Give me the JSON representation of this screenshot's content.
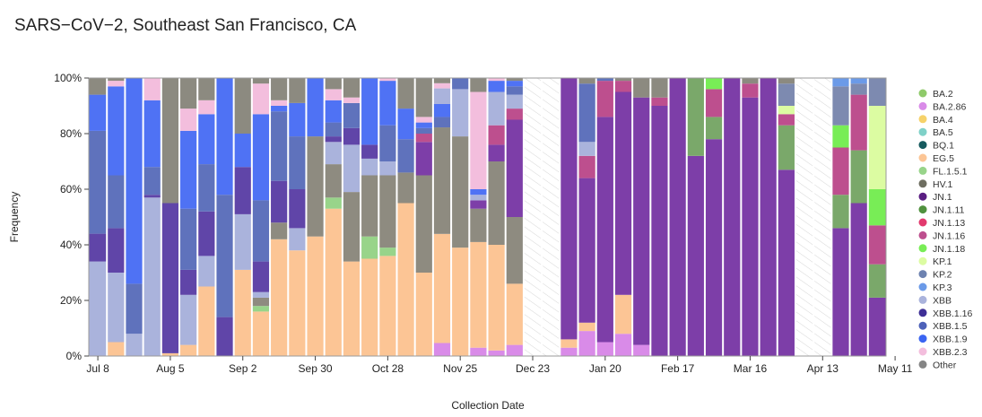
{
  "title": "SARS−CoV−2, Southeast San Francisco, CA",
  "chart_data": {
    "type": "bar",
    "stacked": true,
    "normalized": true,
    "title": "SARS−CoV−2, Southeast San Francisco, CA",
    "xlabel": "Collection Date",
    "ylabel": "Frequency",
    "ylim": [
      0,
      100
    ],
    "y_ticks": [
      "0%",
      "20%",
      "40%",
      "60%",
      "80%",
      "100%"
    ],
    "x_ticks": [
      "Jul 8",
      "Aug 5",
      "Sep 2",
      "Sep 30",
      "Oct 28",
      "Nov 25",
      "Dec 23",
      "Jan 20",
      "Feb 17",
      "Mar 16",
      "Apr 13",
      "May 11"
    ],
    "legend_position": "right",
    "colors": {
      "BA.2": "#8fca6a",
      "BA.2.86": "#d98be8",
      "BA.4": "#f6d26a",
      "BA.5": "#7fd1c8",
      "BQ.1": "#165a5e",
      "EG.5": "#fcc595",
      "FL.1.5.1": "#98d48a",
      "HV.1": "#6e6e60",
      "JN.1": "#5a1e82",
      "JN.1.11": "#50913e",
      "JN.1.13": "#e23a6e",
      "JN.1.16": "#bd4f8e",
      "JN.1.18": "#78ed56",
      "KP.1": "#dcfca2",
      "KP.2": "#6d82b0",
      "KP.3": "#6b9ae8",
      "XBB": "#aab3dc",
      "XBB.1.16": "#3e2f96",
      "XBB.1.5": "#4d61b8",
      "XBB.1.9": "#3b65f2",
      "XBB.2.3": "#f3bedd",
      "Other": "#858585",
      "Other_bar": "#8c8a80",
      "JN.1_bar": "#7d3ea8",
      "XBB.1.16_bar": "#6045a8",
      "XBB.1.5_bar": "#5f72bc",
      "XBB.1.9_bar": "#4f72f4",
      "HV.1_bar": "#8e8b80",
      "JN.1.11_bar": "#7aa86a",
      "KP.2_bar": "#7d8ab0"
    },
    "legend": [
      "BA.2",
      "BA.2.86",
      "BA.4",
      "BA.5",
      "BQ.1",
      "EG.5",
      "FL.1.5.1",
      "HV.1",
      "JN.1",
      "JN.1.11",
      "JN.1.13",
      "JN.1.16",
      "JN.1.18",
      "KP.1",
      "KP.2",
      "KP.3",
      "XBB",
      "XBB.1.16",
      "XBB.1.5",
      "XBB.1.9",
      "XBB.2.3",
      "Other"
    ],
    "weeks": [
      {
        "segments": [
          [
            "XBB",
            34
          ],
          [
            "XBB.1.16",
            10
          ],
          [
            "XBB.1.5",
            37
          ],
          [
            "XBB.1.9",
            13
          ],
          [
            "Other",
            6
          ]
        ]
      },
      {
        "segments": [
          [
            "EG.5",
            5
          ],
          [
            "XBB",
            25
          ],
          [
            "XBB.1.16",
            16
          ],
          [
            "XBB.1.5",
            19
          ],
          [
            "XBB.1.9",
            32
          ],
          [
            "XBB.2.3",
            2
          ],
          [
            "Other",
            1
          ]
        ]
      },
      {
        "segments": [
          [
            "XBB",
            8
          ],
          [
            "XBB.1.5",
            18
          ],
          [
            "XBB.1.9",
            74
          ]
        ]
      },
      {
        "segments": [
          [
            "XBB",
            57
          ],
          [
            "XBB.1.16",
            1
          ],
          [
            "XBB.1.5",
            10
          ],
          [
            "XBB.1.9",
            24
          ],
          [
            "XBB.2.3",
            8
          ]
        ]
      },
      {
        "segments": [
          [
            "EG.5",
            1
          ],
          [
            "XBB.1.16",
            54
          ],
          [
            "Other",
            45
          ]
        ]
      },
      {
        "segments": [
          [
            "EG.5",
            4
          ],
          [
            "XBB",
            18
          ],
          [
            "XBB.1.16",
            9
          ],
          [
            "XBB.1.5",
            22
          ],
          [
            "XBB.1.9",
            28
          ],
          [
            "XBB.2.3",
            8
          ],
          [
            "Other",
            11
          ]
        ]
      },
      {
        "segments": [
          [
            "EG.5",
            25
          ],
          [
            "XBB",
            11
          ],
          [
            "XBB.1.16",
            16
          ],
          [
            "XBB.1.5",
            17
          ],
          [
            "XBB.1.9",
            18
          ],
          [
            "XBB.2.3",
            5
          ],
          [
            "Other",
            8
          ]
        ]
      },
      {
        "segments": [
          [
            "XBB.1.16",
            14
          ],
          [
            "XBB.1.5",
            44
          ],
          [
            "XBB.1.9",
            42
          ]
        ]
      },
      {
        "segments": [
          [
            "EG.5",
            31
          ],
          [
            "XBB",
            20
          ],
          [
            "XBB.1.16",
            17
          ],
          [
            "XBB.1.9",
            12
          ],
          [
            "Other",
            20
          ]
        ]
      },
      {
        "segments": [
          [
            "EG.5",
            16
          ],
          [
            "FL.1.5.1",
            2
          ],
          [
            "HV.1",
            3
          ],
          [
            "XBB",
            2
          ],
          [
            "XBB.1.16",
            11
          ],
          [
            "XBB.1.5",
            22
          ],
          [
            "XBB.1.9",
            31
          ],
          [
            "XBB.2.3",
            11
          ],
          [
            "Other",
            2
          ]
        ]
      },
      {
        "segments": [
          [
            "EG.5",
            42
          ],
          [
            "HV.1",
            6
          ],
          [
            "XBB.1.16",
            15
          ],
          [
            "XBB.1.5",
            25
          ],
          [
            "XBB.1.9",
            2
          ],
          [
            "XBB.2.3",
            2
          ],
          [
            "Other",
            8
          ]
        ]
      },
      {
        "segments": [
          [
            "EG.5",
            38
          ],
          [
            "XBB",
            8
          ],
          [
            "XBB.1.16",
            14
          ],
          [
            "XBB.1.5",
            19
          ],
          [
            "XBB.1.9",
            12
          ],
          [
            "Other",
            9
          ]
        ]
      },
      {
        "segments": [
          [
            "EG.5",
            43
          ],
          [
            "HV.1",
            36
          ],
          [
            "XBB.1.9",
            21
          ]
        ]
      },
      {
        "segments": [
          [
            "EG.5",
            53
          ],
          [
            "FL.1.5.1",
            4
          ],
          [
            "HV.1",
            12
          ],
          [
            "XBB",
            8
          ],
          [
            "XBB.1.16",
            2
          ],
          [
            "XBB.1.5",
            5
          ],
          [
            "XBB.1.9",
            8
          ],
          [
            "XBB.2.3",
            4
          ],
          [
            "Other",
            4
          ]
        ]
      },
      {
        "segments": [
          [
            "EG.5",
            34
          ],
          [
            "HV.1",
            25
          ],
          [
            "XBB",
            17
          ],
          [
            "XBB.1.16",
            6
          ],
          [
            "XBB.1.5",
            9
          ],
          [
            "XBB.2.3",
            2
          ],
          [
            "Other",
            7
          ]
        ]
      },
      {
        "segments": [
          [
            "EG.5",
            35
          ],
          [
            "FL.1.5.1",
            8
          ],
          [
            "HV.1",
            22
          ],
          [
            "XBB",
            6
          ],
          [
            "XBB.1.16",
            5
          ],
          [
            "XBB.1.9",
            24
          ]
        ]
      },
      {
        "segments": [
          [
            "EG.5",
            36
          ],
          [
            "FL.1.5.1",
            3
          ],
          [
            "HV.1",
            26
          ],
          [
            "XBB",
            5
          ],
          [
            "XBB.1.5",
            13
          ],
          [
            "XBB.1.9",
            16
          ],
          [
            "XBB.2.3",
            1
          ]
        ]
      },
      {
        "segments": [
          [
            "EG.5",
            55
          ],
          [
            "HV.1",
            11
          ],
          [
            "XBB.1.5",
            12
          ],
          [
            "XBB.1.9",
            11
          ],
          [
            "Other",
            11
          ]
        ]
      },
      {
        "segments": [
          [
            "EG.5",
            30
          ],
          [
            "HV.1",
            35
          ],
          [
            "JN.1",
            12
          ],
          [
            "JN.1.16",
            3
          ],
          [
            "XBB.1.5",
            2
          ],
          [
            "XBB.1.9",
            2
          ],
          [
            "XBB.2.3",
            2
          ],
          [
            "Other",
            14
          ]
        ]
      },
      {
        "segments": [
          [
            "BA.2.86",
            5
          ],
          [
            "EG.5",
            42
          ],
          [
            "HV.1",
            41
          ],
          [
            "XBB.1.5",
            4
          ],
          [
            "XBB.1.9",
            5
          ],
          [
            "XBB",
            6
          ],
          [
            "XBB.2.3",
            2
          ],
          [
            "Other",
            2
          ]
        ]
      },
      {
        "segments": [
          [
            "EG.5",
            39
          ],
          [
            "HV.1",
            40
          ],
          [
            "XBB",
            17
          ],
          [
            "XBB.1.5",
            4
          ]
        ]
      },
      {
        "segments": [
          [
            "BA.2.86",
            3
          ],
          [
            "EG.5",
            38
          ],
          [
            "HV.1",
            12
          ],
          [
            "JN.1",
            3
          ],
          [
            "XBB",
            2
          ],
          [
            "XBB.1.9",
            2
          ],
          [
            "XBB.2.3",
            35
          ],
          [
            "Other",
            5
          ]
        ]
      },
      {
        "segments": [
          [
            "BA.2.86",
            2
          ],
          [
            "EG.5",
            38
          ],
          [
            "HV.1",
            30
          ],
          [
            "JN.1",
            6
          ],
          [
            "JN.1.16",
            7
          ],
          [
            "XBB",
            12
          ],
          [
            "XBB.1.9",
            4
          ],
          [
            "XBB.2.3",
            1
          ]
        ]
      },
      {
        "segments": [
          [
            "BA.2.86",
            4
          ],
          [
            "EG.5",
            22
          ],
          [
            "HV.1",
            24
          ],
          [
            "JN.1",
            35
          ],
          [
            "JN.1.16",
            4
          ],
          [
            "XBB",
            5
          ],
          [
            "XBB.1.5",
            3
          ],
          [
            "XBB.1.9",
            2
          ],
          [
            "Other",
            1
          ]
        ]
      },
      {
        "gap": true
      },
      {
        "gap": true
      },
      {
        "segments": [
          [
            "BA.2.86",
            3
          ],
          [
            "EG.5",
            3
          ],
          [
            "JN.1",
            94
          ]
        ]
      },
      {
        "segments": [
          [
            "BA.2.86",
            9
          ],
          [
            "EG.5",
            3
          ],
          [
            "JN.1",
            52
          ],
          [
            "JN.1.16",
            8
          ],
          [
            "XBB",
            5
          ],
          [
            "XBB.1.5",
            21
          ],
          [
            "Other",
            2
          ]
        ]
      },
      {
        "segments": [
          [
            "BA.2.86",
            5
          ],
          [
            "JN.1",
            81
          ],
          [
            "JN.1.16",
            13
          ],
          [
            "XBB.1.5",
            1
          ]
        ]
      },
      {
        "segments": [
          [
            "BA.2.86",
            8
          ],
          [
            "EG.5",
            14
          ],
          [
            "JN.1",
            73
          ],
          [
            "JN.1.16",
            4
          ],
          [
            "Other",
            1
          ]
        ]
      },
      {
        "segments": [
          [
            "BA.2.86",
            4
          ],
          [
            "JN.1",
            89
          ],
          [
            "Other",
            7
          ]
        ]
      },
      {
        "segments": [
          [
            "JN.1",
            90
          ],
          [
            "JN.1.16",
            3
          ],
          [
            "Other",
            7
          ]
        ]
      },
      {
        "segments": [
          [
            "JN.1",
            100
          ]
        ]
      },
      {
        "segments": [
          [
            "JN.1",
            72
          ],
          [
            "JN.1.11",
            28
          ]
        ]
      },
      {
        "segments": [
          [
            "JN.1",
            78
          ],
          [
            "JN.1.11",
            8
          ],
          [
            "JN.1.16",
            10
          ],
          [
            "JN.1.18",
            4
          ]
        ]
      },
      {
        "segments": [
          [
            "JN.1",
            100
          ]
        ]
      },
      {
        "segments": [
          [
            "JN.1",
            93
          ],
          [
            "JN.1.16",
            5
          ],
          [
            "Other",
            2
          ]
        ]
      },
      {
        "segments": [
          [
            "JN.1",
            100
          ]
        ]
      },
      {
        "segments": [
          [
            "JN.1",
            67
          ],
          [
            "JN.1.11",
            16
          ],
          [
            "JN.1.16",
            4
          ],
          [
            "KP.1",
            3
          ],
          [
            "KP.2",
            8
          ],
          [
            "Other",
            2
          ]
        ]
      },
      {
        "gap": true
      },
      {
        "gap": true
      },
      {
        "segments": [
          [
            "JN.1",
            46
          ],
          [
            "JN.1.11",
            12
          ],
          [
            "JN.1.16",
            17
          ],
          [
            "JN.1.18",
            8
          ],
          [
            "KP.2",
            14
          ],
          [
            "KP.3",
            3
          ]
        ]
      },
      {
        "segments": [
          [
            "JN.1",
            55
          ],
          [
            "JN.1.11",
            19
          ],
          [
            "JN.1.16",
            20
          ],
          [
            "KP.2",
            4
          ],
          [
            "KP.3",
            2
          ]
        ]
      },
      {
        "segments": [
          [
            "JN.1",
            21
          ],
          [
            "JN.1.11",
            12
          ],
          [
            "JN.1.16",
            14
          ],
          [
            "JN.1.18",
            13
          ],
          [
            "KP.1",
            30
          ],
          [
            "KP.2",
            10
          ]
        ]
      }
    ]
  }
}
